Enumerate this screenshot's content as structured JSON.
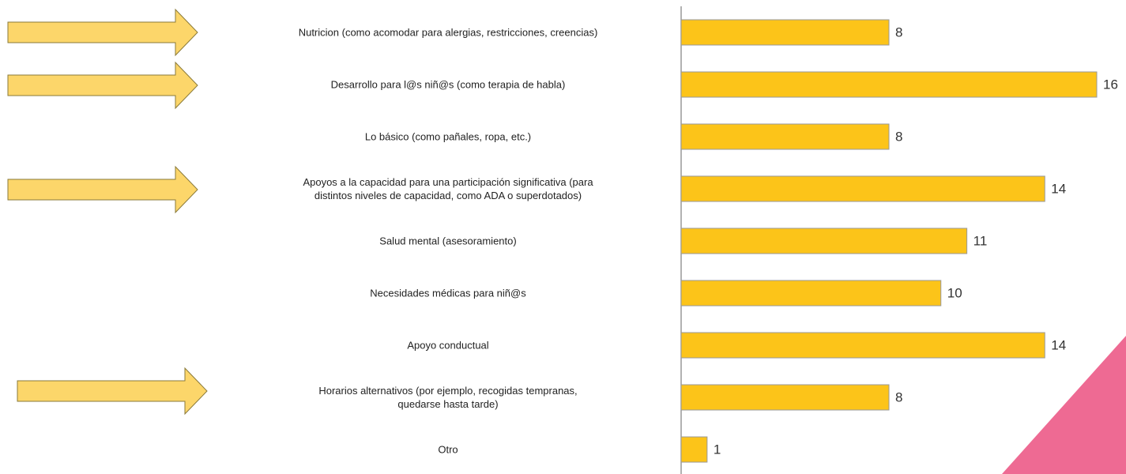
{
  "chart_data": {
    "type": "bar",
    "orientation": "horizontal",
    "categories": [
      "Nutricion (como acomodar para alergias, restricciones, creencias)",
      "Desarrollo para l@s niñ@s (como terapia de habla)",
      "Lo básico (como pañales, ropa, etc.)",
      "Apoyos a la capacidad para una participación significativa (para\ndistintos niveles de capacidad, como ADA o superdotados)",
      "Salud mental (asesoramiento)",
      "Necesidades médicas para niñ@s",
      "Apoyo conductual",
      "Horarios alternativos (por ejemplo, recogidas tempranas,\nquedarse hasta tarde)",
      "Otro"
    ],
    "values": [
      8,
      16,
      8,
      14,
      11,
      10,
      14,
      8,
      1
    ],
    "color": "#fcc419",
    "xlim": [
      0,
      16
    ]
  }
}
